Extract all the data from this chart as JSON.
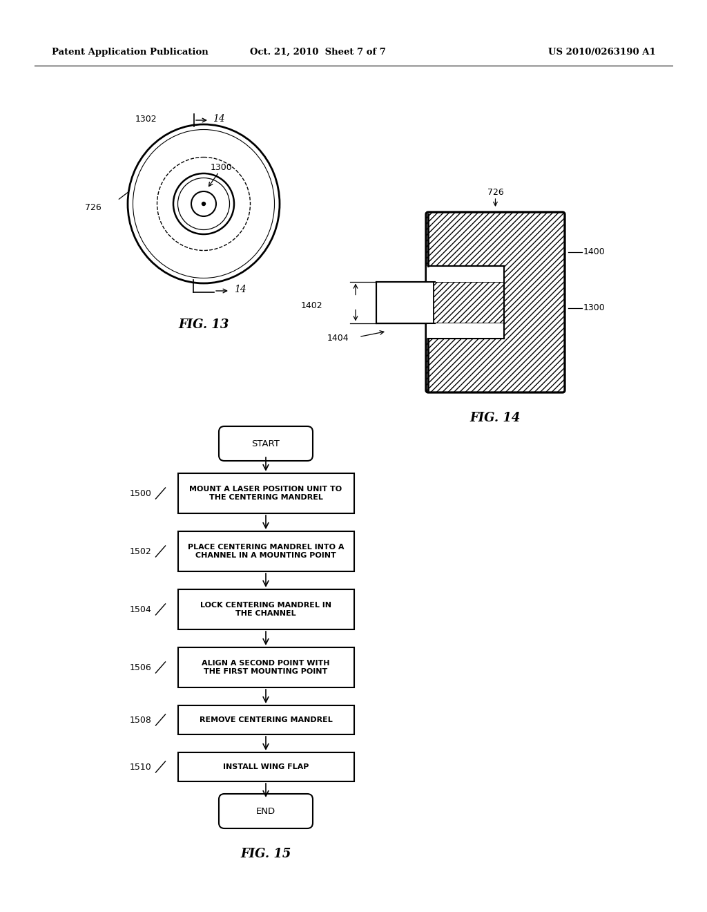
{
  "bg_color": "#ffffff",
  "header_left": "Patent Application Publication",
  "header_mid": "Oct. 21, 2010  Sheet 7 of 7",
  "header_right": "US 2010/0263190 A1",
  "fig13_label": "FIG. 13",
  "fig14_label": "FIG. 14",
  "fig15_label": "FIG. 15",
  "start_label": "START",
  "end_label": "END",
  "steps": [
    {
      "id": "1500",
      "text": "MOUNT A LASER POSITION UNIT TO\nTHE CENTERING MANDREL"
    },
    {
      "id": "1502",
      "text": "PLACE CENTERING MANDREL INTO A\nCHANNEL IN A MOUNTING POINT"
    },
    {
      "id": "1504",
      "text": "LOCK CENTERING MANDREL IN\nTHE CHANNEL"
    },
    {
      "id": "1506",
      "text": "ALIGN A SECOND POINT WITH\nTHE FIRST MOUNTING POINT"
    },
    {
      "id": "1508",
      "text": "REMOVE CENTERING MANDREL"
    },
    {
      "id": "1510",
      "text": "INSTALL WING FLAP"
    }
  ]
}
